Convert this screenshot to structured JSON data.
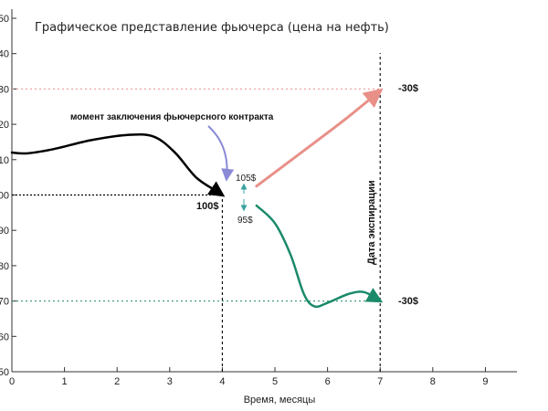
{
  "chart_data": {
    "type": "line",
    "title": "Графическое представление фьючерса (цена на нефть)",
    "xlabel": "Время, месяцы",
    "ylabel": "",
    "xlim": [
      0,
      9.6
    ],
    "ylim": [
      50,
      150
    ],
    "x_ticks": [
      "0",
      "1",
      "2",
      "3",
      "4",
      "5",
      "6",
      "7",
      "8",
      "9"
    ],
    "y_ticks": [
      "50",
      "60",
      "70",
      "80",
      "90",
      "100",
      "110",
      "120",
      "130",
      "140",
      "150"
    ],
    "series": [
      {
        "color": "#000000",
        "points": [
          [
            0,
            112
          ],
          [
            0.3,
            111.8
          ],
          [
            0.8,
            113
          ],
          [
            1.5,
            115.5
          ],
          [
            2.2,
            117
          ],
          [
            2.7,
            116.5
          ],
          [
            3.1,
            112
          ],
          [
            3.5,
            105
          ],
          [
            3.9,
            101
          ],
          [
            4.0,
            100
          ]
        ]
      },
      {
        "color": "#e89088",
        "points": [
          [
            4.65,
            102.5
          ],
          [
            5.5,
            112
          ],
          [
            6.3,
            121
          ],
          [
            7.0,
            129.5
          ]
        ]
      },
      {
        "color": "#1a8a6a",
        "points": [
          [
            4.65,
            97
          ],
          [
            5.0,
            92
          ],
          [
            5.3,
            83
          ],
          [
            5.55,
            72
          ],
          [
            5.75,
            68.5
          ],
          [
            6.0,
            69.5
          ],
          [
            6.4,
            72
          ],
          [
            6.7,
            72.5
          ],
          [
            7.0,
            70
          ]
        ]
      }
    ],
    "reference_lines": {
      "horizontal": [
        {
          "y": 100,
          "color": "#000000",
          "x_to": 4
        },
        {
          "y": 130,
          "color": "#e89088",
          "x_to": 7
        },
        {
          "y": 70,
          "color": "#1a8a6a",
          "x_to": 7
        }
      ],
      "vertical": [
        {
          "x": 4,
          "color": "#000000"
        },
        {
          "x": 7,
          "color": "#000000",
          "label": "Дата экспирации"
        }
      ]
    },
    "annotations": {
      "contract_moment": "момент заключения фьючерсного контракта",
      "price_start": "100$",
      "price_up": "105$",
      "price_down": "95$",
      "result_top": "-30$",
      "result_bottom": "-30$"
    },
    "colors": {
      "axis": "#333333",
      "black": "#000000",
      "red": "#e89088",
      "red_text": "#e05a4a",
      "green": "#1a8a6a",
      "teal_arrow": "#3aa0a0",
      "purple": "#8a8ad6"
    },
    "grid": false
  }
}
